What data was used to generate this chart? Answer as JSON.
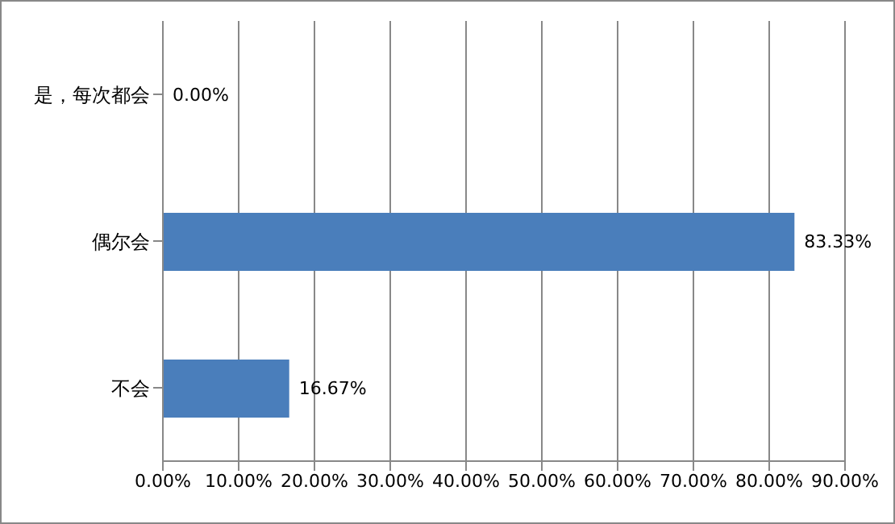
{
  "chart_data": {
    "type": "bar",
    "orientation": "horizontal",
    "categories": [
      "是，每次都会",
      "偶尔会",
      "不会"
    ],
    "values": [
      0,
      83.33,
      16.67
    ],
    "color": "#4a7ebb",
    "value_labels": [
      "0.00%",
      "83.33%",
      "16.67%"
    ],
    "xlim": [
      0,
      90
    ],
    "xticks": [
      {
        "value": 0,
        "label": "0.00%"
      },
      {
        "value": 10,
        "label": "10.00%"
      },
      {
        "value": 20,
        "label": "20.00%"
      },
      {
        "value": 30,
        "label": "30.00%"
      },
      {
        "value": 40,
        "label": "40.00%"
      },
      {
        "value": 50,
        "label": "50.00%"
      },
      {
        "value": 60,
        "label": "60.00%"
      },
      {
        "value": 70,
        "label": "70.00%"
      },
      {
        "value": 80,
        "label": "80.00%"
      },
      {
        "value": 90,
        "label": "90.00%"
      }
    ],
    "grid": "x",
    "legend": false
  }
}
